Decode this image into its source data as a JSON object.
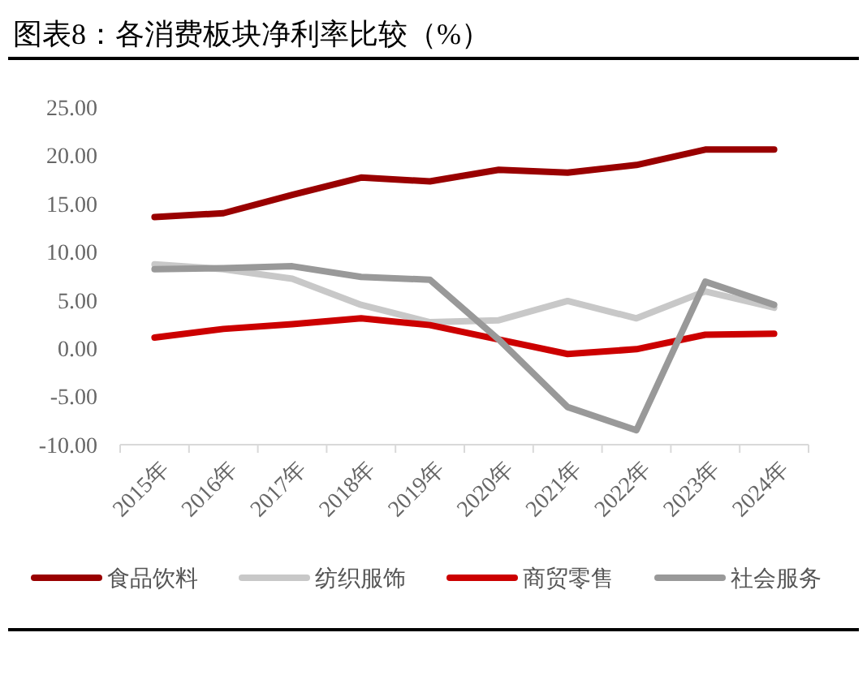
{
  "chart_data": {
    "type": "line",
    "title": "图表8：各消费板块净利率比较（%）",
    "categories": [
      "2015年",
      "2016年",
      "2017年",
      "2018年",
      "2019年",
      "2020年",
      "2021年",
      "2022年",
      "2023年",
      "2024年"
    ],
    "series": [
      {
        "name": "食品饮料",
        "color": "#990000",
        "values": [
          13.6,
          14.0,
          15.9,
          17.7,
          17.3,
          18.5,
          18.2,
          19.0,
          20.6,
          20.6
        ]
      },
      {
        "name": "纺织服饰",
        "color": "#c8c8c8",
        "values": [
          8.7,
          8.2,
          7.2,
          4.5,
          2.7,
          2.9,
          4.9,
          3.1,
          5.9,
          4.2
        ]
      },
      {
        "name": "商贸零售",
        "color": "#cc0000",
        "values": [
          1.1,
          2.0,
          2.5,
          3.1,
          2.4,
          0.9,
          -0.6,
          -0.1,
          1.4,
          1.5
        ]
      },
      {
        "name": "社会服务",
        "color": "#999999",
        "values": [
          8.2,
          8.3,
          8.5,
          7.4,
          7.1,
          0.9,
          -6.1,
          -8.5,
          6.9,
          4.5
        ]
      }
    ],
    "ylim": [
      -10,
      25
    ],
    "yticks": [
      {
        "value": -10,
        "label": "-10.00"
      },
      {
        "value": -5,
        "label": "-5.00"
      },
      {
        "value": 0,
        "label": "0.00"
      },
      {
        "value": 5,
        "label": "5.00"
      },
      {
        "value": 10,
        "label": "10.00"
      },
      {
        "value": 15,
        "label": "15.00"
      },
      {
        "value": 20,
        "label": "20.00"
      },
      {
        "value": 25,
        "label": "25.00"
      }
    ],
    "grid": false,
    "legend": "bottom",
    "marker": "none",
    "line_style": "solid"
  }
}
